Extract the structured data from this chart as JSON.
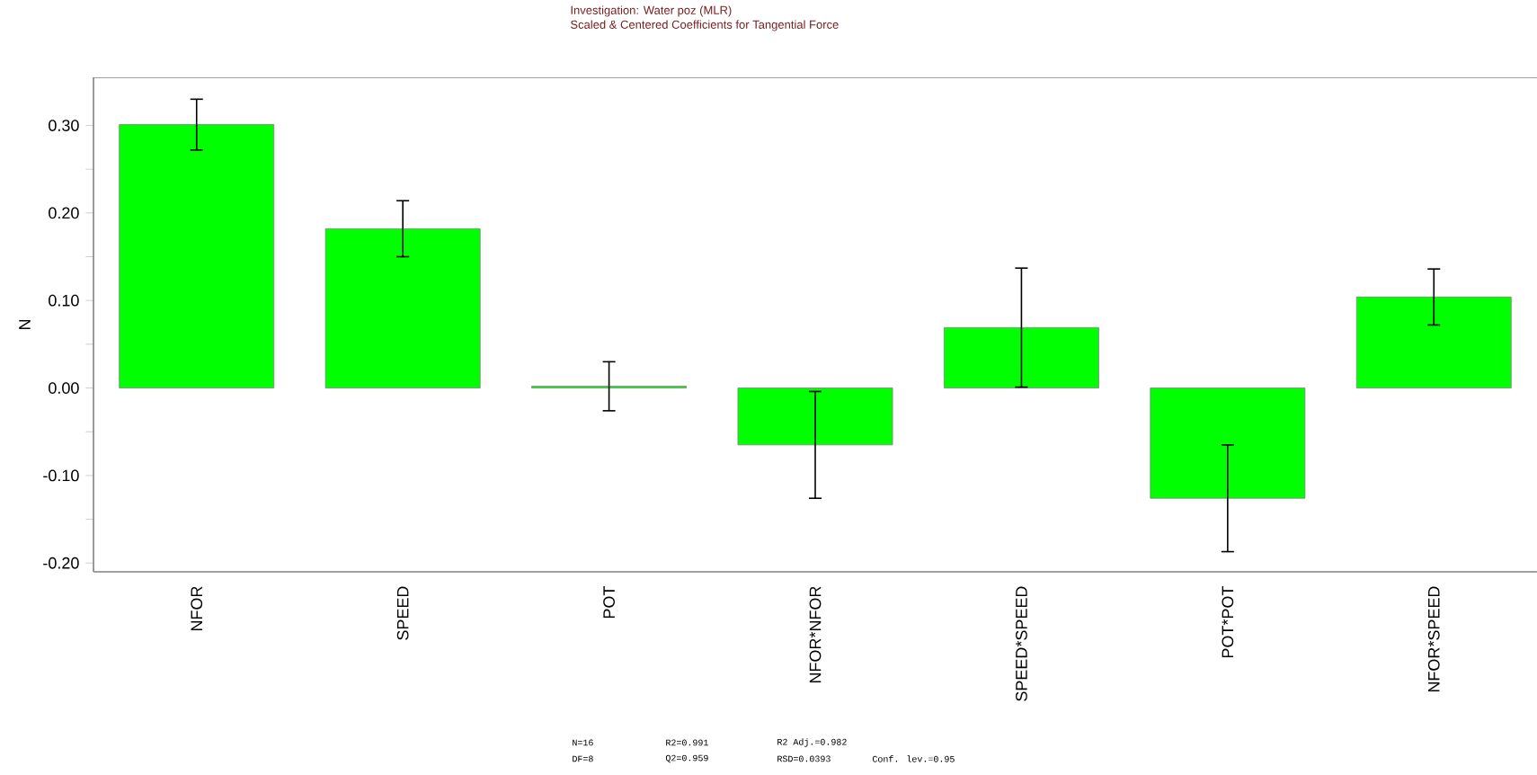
{
  "chart_data": {
    "type": "bar",
    "title": "Investigation: Water poz (MLR)",
    "subtitle": "Scaled & Centered Coefficients for Tangential Force",
    "ylabel": "N",
    "categories": [
      "NFOR",
      "SPEED",
      "POT",
      "NFOR*NFOR",
      "SPEED*SPEED",
      "POT*POT",
      "NFOR*SPEED"
    ],
    "values": [
      0.301,
      0.182,
      0.002,
      -0.065,
      0.069,
      -0.126,
      0.104
    ],
    "errors": [
      0.029,
      0.032,
      0.028,
      0.061,
      0.068,
      0.061,
      0.032
    ],
    "color": "#00ff00",
    "ylim": [
      -0.21,
      0.355
    ],
    "yticks": [
      {
        "value": -0.2,
        "label": "-0.20"
      },
      {
        "value": -0.15,
        "label": null
      },
      {
        "value": -0.1,
        "label": "-0.10"
      },
      {
        "value": -0.05,
        "label": null
      },
      {
        "value": 0,
        "label": "0.00"
      },
      {
        "value": 0.05,
        "label": null
      },
      {
        "value": 0.1,
        "label": "0.10"
      },
      {
        "value": 0.15,
        "label": null
      },
      {
        "value": 0.2,
        "label": "0.20"
      },
      {
        "value": 0.25,
        "label": null
      },
      {
        "value": 0.3,
        "label": "0.30"
      }
    ],
    "grid": false,
    "annotations": [
      "N=16",
      "R2=0.991",
      "R2 Adj.=0.982",
      "DF=8",
      "Q2=0.959",
      "RSD=0.0393",
      "Conf. lev.=0.95"
    ]
  }
}
